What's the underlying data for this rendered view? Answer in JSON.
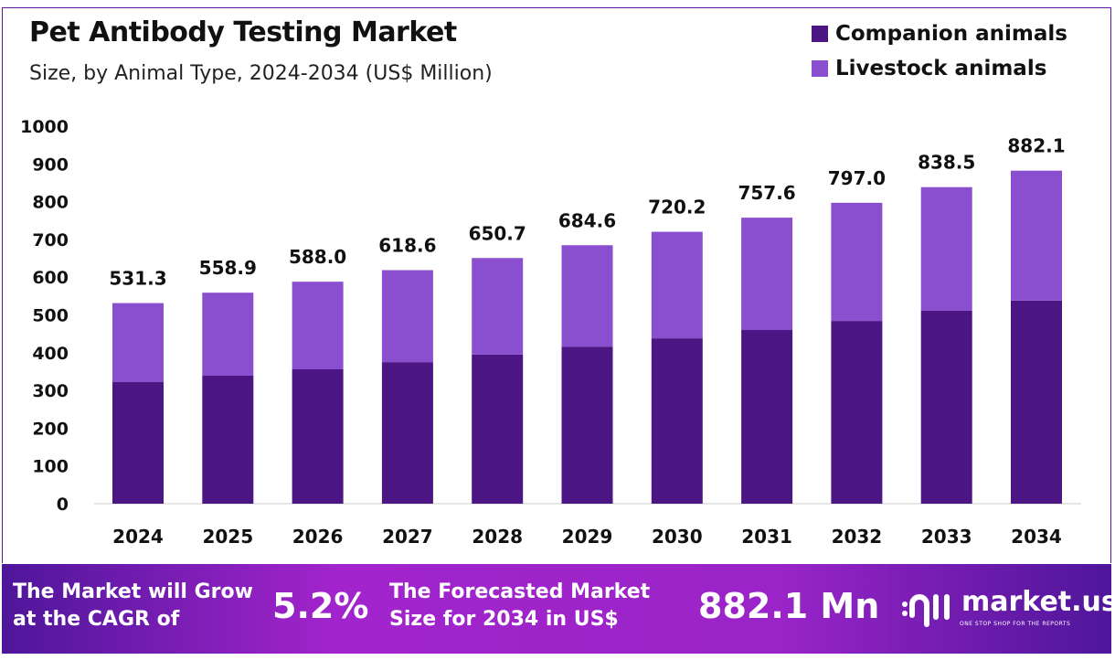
{
  "chart_data": {
    "type": "bar",
    "stacked": true,
    "title": "Pet Antibody Testing Market",
    "subtitle": "Size, by Animal Type, 2024-2034 (US$ Million)",
    "categories": [
      "2024",
      "2025",
      "2026",
      "2027",
      "2028",
      "2029",
      "2030",
      "2031",
      "2032",
      "2033",
      "2034"
    ],
    "series": [
      {
        "name": "Companion animals",
        "color": "#4b1583",
        "values": [
          322,
          339,
          356,
          375,
          395,
          416,
          438,
          460,
          484,
          511,
          538
        ]
      },
      {
        "name": "Livestock animals",
        "color": "#8a4fcf",
        "values": [
          209.3,
          219.9,
          232.0,
          243.6,
          255.7,
          268.6,
          282.2,
          297.6,
          313.0,
          327.5,
          344.1
        ]
      }
    ],
    "totals": [
      "531.3",
      "558.9",
      "588.0",
      "618.6",
      "650.7",
      "684.6",
      "720.2",
      "757.6",
      "797.0",
      "838.5",
      "882.1"
    ],
    "ylim": [
      0,
      1000
    ],
    "yticks": [
      "0",
      "100",
      "200",
      "300",
      "400",
      "500",
      "600",
      "700",
      "800",
      "900",
      "1000"
    ],
    "grid": false,
    "legend": "top-right"
  },
  "banner": {
    "cagr_label_1": "The Market will Grow",
    "cagr_label_2": "at the CAGR of",
    "cagr_value": "5.2%",
    "forecast_label_1": "The Forecasted Market",
    "forecast_label_2": "Size for 2034 in US$",
    "forecast_value": "882.1 Mn",
    "logo_text": "market.us",
    "logo_tagline": "ONE STOP SHOP FOR THE REPORTS"
  }
}
